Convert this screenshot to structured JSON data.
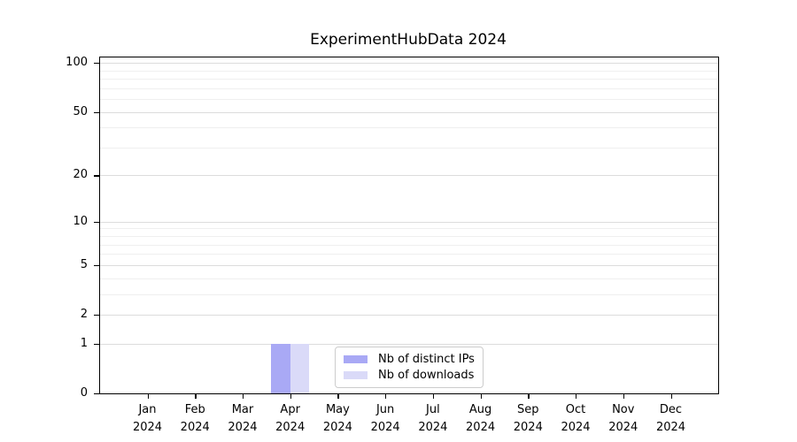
{
  "title": "ExperimentHubData 2024",
  "palette": {
    "background": "#ffffff",
    "axis": "#000000",
    "grid_major": "#dcdcdc",
    "grid_minor": "#efefef",
    "legend_border": "#cccccc",
    "series_distinct_ips": "#a9a9f5",
    "series_downloads": "#dadaf8"
  },
  "chart_data": {
    "type": "bar",
    "title": "ExperimentHubData 2024",
    "categories": [
      "Jan",
      "Feb",
      "Mar",
      "Apr",
      "May",
      "Jun",
      "Jul",
      "Aug",
      "Sep",
      "Oct",
      "Nov",
      "Dec"
    ],
    "category_year_label": "2024",
    "series": [
      {
        "name": "Nb of distinct IPs",
        "color": "#a9a9f5",
        "values": [
          0,
          0,
          0,
          1,
          0,
          0,
          0,
          0,
          0,
          0,
          0,
          0
        ]
      },
      {
        "name": "Nb of downloads",
        "color": "#dadaf8",
        "values": [
          0,
          0,
          0,
          1,
          0,
          0,
          0,
          0,
          0,
          0,
          0,
          0
        ]
      }
    ],
    "xlabel": "",
    "ylabel": "",
    "y_scale": "log1p",
    "y_ticks": [
      0,
      1,
      2,
      5,
      10,
      20,
      50,
      100
    ],
    "y_minor_gridlines": [
      3,
      4,
      6,
      7,
      8,
      9,
      30,
      40,
      60,
      70,
      80,
      90
    ],
    "ylim": [
      0,
      108
    ],
    "grid": true,
    "legend_position": "lower center"
  }
}
